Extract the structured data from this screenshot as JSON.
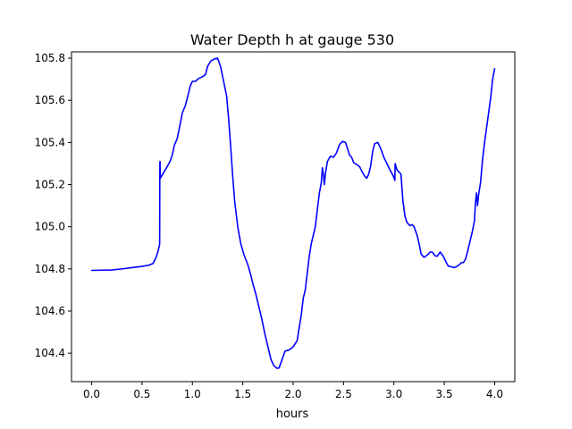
{
  "chart_data": {
    "type": "line",
    "title": "Water Depth h at gauge 530",
    "xlabel": "hours",
    "ylabel": "",
    "xlim": [
      -0.2,
      4.2
    ],
    "ylim": [
      104.265,
      105.83
    ],
    "grid": false,
    "legend": "none",
    "xticks": [
      {
        "value": 0.0,
        "label": "0.0"
      },
      {
        "value": 0.5,
        "label": "0.5"
      },
      {
        "value": 1.0,
        "label": "1.0"
      },
      {
        "value": 1.5,
        "label": "1.5"
      },
      {
        "value": 2.0,
        "label": "2.0"
      },
      {
        "value": 2.5,
        "label": "2.5"
      },
      {
        "value": 3.0,
        "label": "3.0"
      },
      {
        "value": 3.5,
        "label": "3.5"
      },
      {
        "value": 4.0,
        "label": "4.0"
      }
    ],
    "yticks": [
      {
        "value": 104.4,
        "label": "104.4"
      },
      {
        "value": 104.6,
        "label": "104.6"
      },
      {
        "value": 104.8,
        "label": "104.8"
      },
      {
        "value": 105.0,
        "label": "105.0"
      },
      {
        "value": 105.2,
        "label": "105.2"
      },
      {
        "value": 105.4,
        "label": "105.4"
      },
      {
        "value": 105.6,
        "label": "105.6"
      },
      {
        "value": 105.8,
        "label": "105.8"
      }
    ],
    "series": [
      {
        "color": "#0000ff",
        "points": [
          [
            0.0,
            104.793
          ],
          [
            0.2,
            104.795
          ],
          [
            0.3,
            104.8
          ],
          [
            0.4,
            104.806
          ],
          [
            0.5,
            104.812
          ],
          [
            0.57,
            104.818
          ],
          [
            0.61,
            104.826
          ],
          [
            0.64,
            104.855
          ],
          [
            0.66,
            104.885
          ],
          [
            0.675,
            104.918
          ],
          [
            0.677,
            105.3
          ],
          [
            0.679,
            105.31
          ],
          [
            0.681,
            105.23
          ],
          [
            0.7,
            105.245
          ],
          [
            0.72,
            105.262
          ],
          [
            0.75,
            105.285
          ],
          [
            0.78,
            105.312
          ],
          [
            0.8,
            105.34
          ],
          [
            0.82,
            105.385
          ],
          [
            0.85,
            105.42
          ],
          [
            0.88,
            105.49
          ],
          [
            0.9,
            105.54
          ],
          [
            0.93,
            105.575
          ],
          [
            0.96,
            105.63
          ],
          [
            0.98,
            105.67
          ],
          [
            1.0,
            105.69
          ],
          [
            1.03,
            105.69
          ],
          [
            1.06,
            105.703
          ],
          [
            1.1,
            105.712
          ],
          [
            1.13,
            105.722
          ],
          [
            1.15,
            105.76
          ],
          [
            1.18,
            105.785
          ],
          [
            1.22,
            105.797
          ],
          [
            1.25,
            105.8
          ],
          [
            1.28,
            105.76
          ],
          [
            1.31,
            105.69
          ],
          [
            1.34,
            105.62
          ],
          [
            1.36,
            105.51
          ],
          [
            1.38,
            105.38
          ],
          [
            1.4,
            105.24
          ],
          [
            1.42,
            105.12
          ],
          [
            1.45,
            105.0
          ],
          [
            1.48,
            104.92
          ],
          [
            1.51,
            104.87
          ],
          [
            1.55,
            104.82
          ],
          [
            1.58,
            104.77
          ],
          [
            1.6,
            104.73
          ],
          [
            1.63,
            104.68
          ],
          [
            1.66,
            104.62
          ],
          [
            1.69,
            104.56
          ],
          [
            1.72,
            104.49
          ],
          [
            1.75,
            104.43
          ],
          [
            1.78,
            104.37
          ],
          [
            1.81,
            104.34
          ],
          [
            1.84,
            104.328
          ],
          [
            1.86,
            104.33
          ],
          [
            1.89,
            104.37
          ],
          [
            1.92,
            104.41
          ],
          [
            1.96,
            104.415
          ],
          [
            2.0,
            104.43
          ],
          [
            2.04,
            104.46
          ],
          [
            2.06,
            104.52
          ],
          [
            2.08,
            104.58
          ],
          [
            2.1,
            104.66
          ],
          [
            2.12,
            104.7
          ],
          [
            2.14,
            104.78
          ],
          [
            2.16,
            104.86
          ],
          [
            2.18,
            104.92
          ],
          [
            2.2,
            104.96
          ],
          [
            2.22,
            105.0
          ],
          [
            2.24,
            105.08
          ],
          [
            2.26,
            105.16
          ],
          [
            2.28,
            105.21
          ],
          [
            2.29,
            105.28
          ],
          [
            2.3,
            105.25
          ],
          [
            2.31,
            105.2
          ],
          [
            2.32,
            105.25
          ],
          [
            2.34,
            105.31
          ],
          [
            2.37,
            105.335
          ],
          [
            2.4,
            105.33
          ],
          [
            2.43,
            105.35
          ],
          [
            2.46,
            105.39
          ],
          [
            2.49,
            105.405
          ],
          [
            2.52,
            105.4
          ],
          [
            2.54,
            105.37
          ],
          [
            2.56,
            105.34
          ],
          [
            2.58,
            105.33
          ],
          [
            2.6,
            105.305
          ],
          [
            2.63,
            105.295
          ],
          [
            2.66,
            105.285
          ],
          [
            2.68,
            105.265
          ],
          [
            2.71,
            105.24
          ],
          [
            2.73,
            105.23
          ],
          [
            2.75,
            105.25
          ],
          [
            2.77,
            105.29
          ],
          [
            2.79,
            105.36
          ],
          [
            2.81,
            105.395
          ],
          [
            2.84,
            105.4
          ],
          [
            2.87,
            105.37
          ],
          [
            2.9,
            105.33
          ],
          [
            2.93,
            105.3
          ],
          [
            2.96,
            105.27
          ],
          [
            2.99,
            105.245
          ],
          [
            3.01,
            105.22
          ],
          [
            3.012,
            105.3
          ],
          [
            3.03,
            105.27
          ],
          [
            3.05,
            105.26
          ],
          [
            3.07,
            105.25
          ],
          [
            3.09,
            105.12
          ],
          [
            3.11,
            105.05
          ],
          [
            3.13,
            105.02
          ],
          [
            3.16,
            105.005
          ],
          [
            3.18,
            105.01
          ],
          [
            3.2,
            105.0
          ],
          [
            3.23,
            104.96
          ],
          [
            3.25,
            104.92
          ],
          [
            3.27,
            104.87
          ],
          [
            3.3,
            104.855
          ],
          [
            3.33,
            104.865
          ],
          [
            3.36,
            104.88
          ],
          [
            3.38,
            104.88
          ],
          [
            3.41,
            104.862
          ],
          [
            3.43,
            104.86
          ],
          [
            3.46,
            104.88
          ],
          [
            3.49,
            104.86
          ],
          [
            3.52,
            104.83
          ],
          [
            3.54,
            104.813
          ],
          [
            3.57,
            104.81
          ],
          [
            3.6,
            104.806
          ],
          [
            3.62,
            104.81
          ],
          [
            3.65,
            104.82
          ],
          [
            3.67,
            104.83
          ],
          [
            3.69,
            104.83
          ],
          [
            3.71,
            104.845
          ],
          [
            3.73,
            104.88
          ],
          [
            3.75,
            104.92
          ],
          [
            3.78,
            104.98
          ],
          [
            3.8,
            105.03
          ],
          [
            3.81,
            105.12
          ],
          [
            3.82,
            105.16
          ],
          [
            3.83,
            105.1
          ],
          [
            3.84,
            105.15
          ],
          [
            3.86,
            105.21
          ],
          [
            3.88,
            105.32
          ],
          [
            3.9,
            105.4
          ],
          [
            3.92,
            105.47
          ],
          [
            3.94,
            105.54
          ],
          [
            3.96,
            105.61
          ],
          [
            3.98,
            105.7
          ],
          [
            4.0,
            105.75
          ]
        ]
      }
    ]
  }
}
